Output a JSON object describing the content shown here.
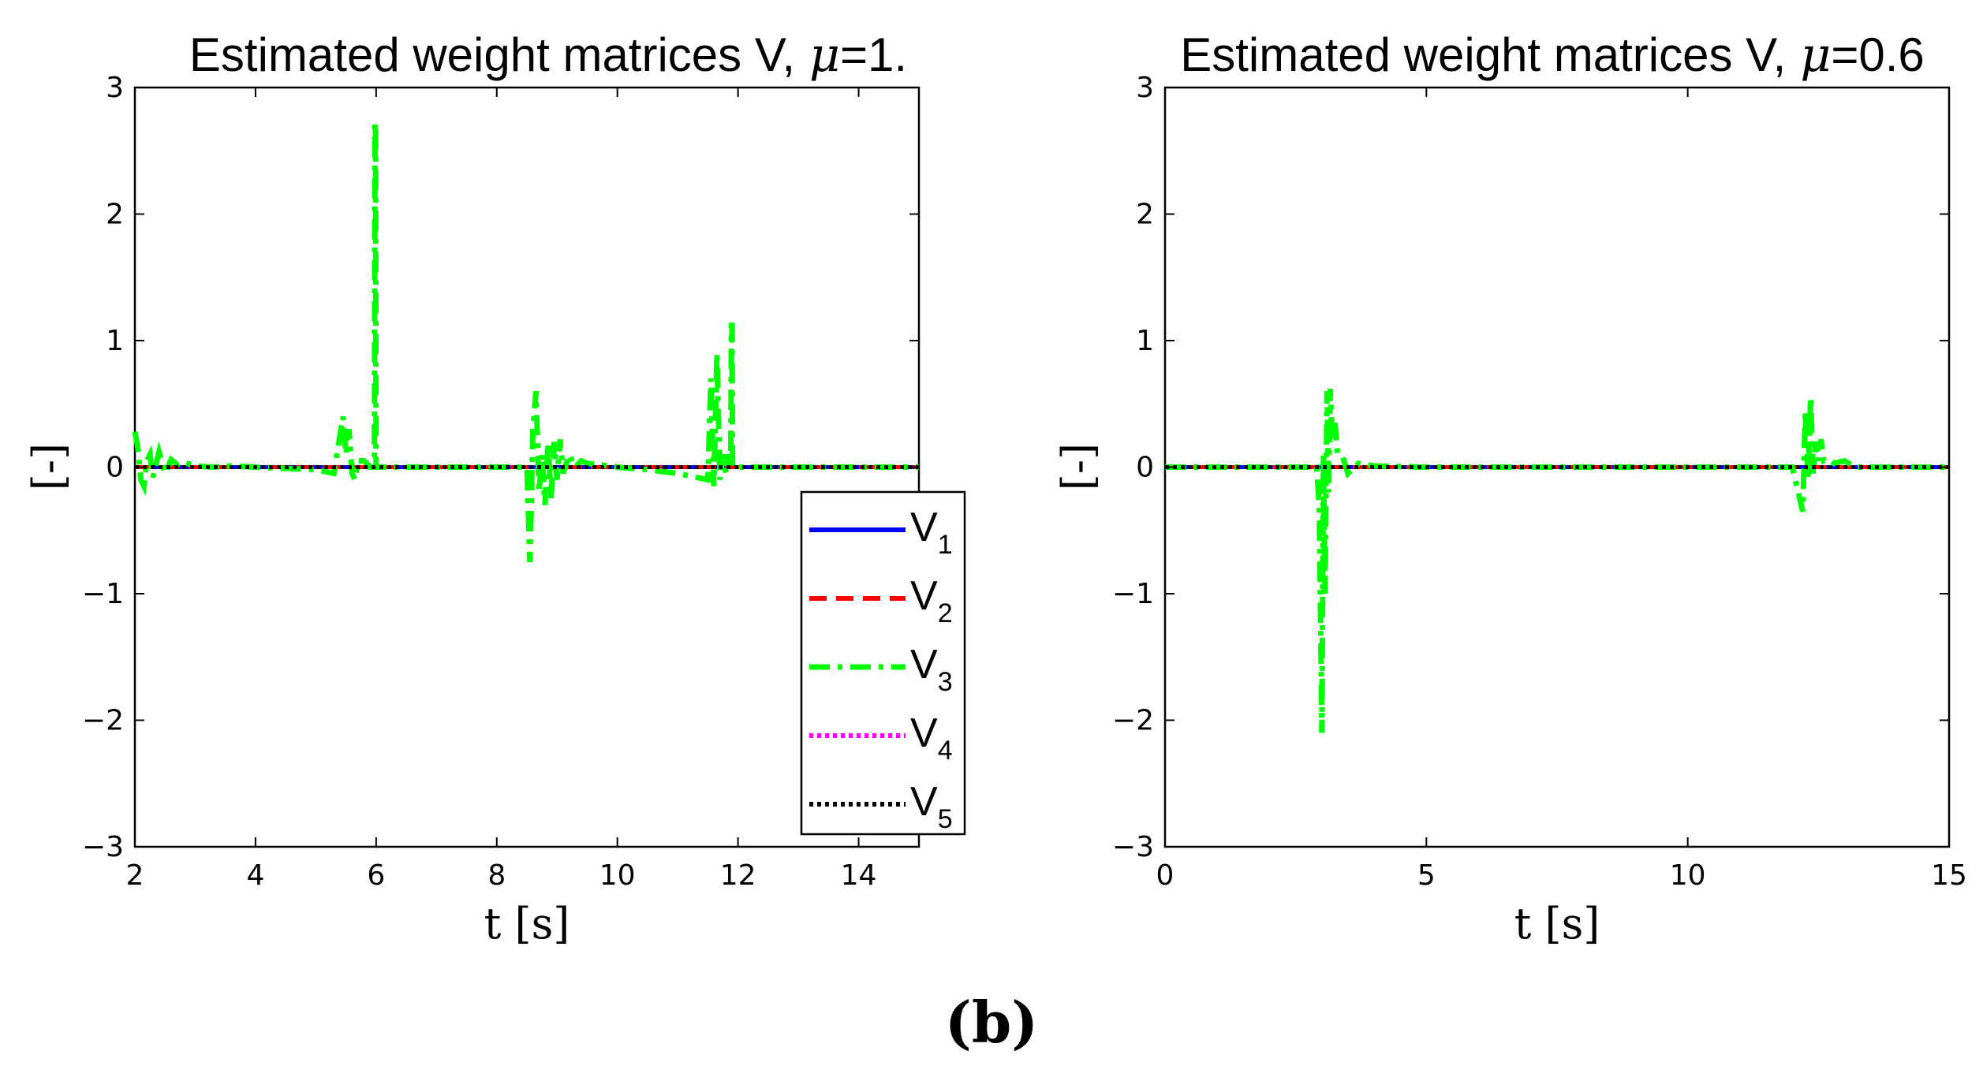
{
  "chart_data": [
    {
      "type": "line",
      "title": "Estimated weight matrices V,",
      "title_symbol": "μ",
      "title_value": "=1.",
      "xlabel": "t [s]",
      "ylabel": "[-]",
      "xlim": [
        2,
        15
      ],
      "ylim": [
        -3,
        3
      ],
      "xticks": [
        2,
        4,
        6,
        8,
        10,
        12,
        14
      ],
      "xtick_labels": [
        "2",
        "4",
        "6",
        "8",
        "10",
        "12",
        "14"
      ],
      "yticks": [
        -3,
        -2,
        -1,
        0,
        1,
        2,
        3
      ],
      "ytick_labels": [
        "−3",
        "−2",
        "−1",
        "0",
        "1",
        "2",
        "3"
      ],
      "legend": {
        "position": "lower-right",
        "entries": [
          {
            "base": "V",
            "sub": "1"
          },
          {
            "base": "V",
            "sub": "2"
          },
          {
            "base": "V",
            "sub": "3"
          },
          {
            "base": "V",
            "sub": "4"
          },
          {
            "base": "V",
            "sub": "5"
          }
        ]
      },
      "series": [
        {
          "name": "V1",
          "color": "#0000ff",
          "style": "solid",
          "x": [
            2,
            15
          ],
          "y": [
            0,
            0
          ]
        },
        {
          "name": "V2",
          "color": "#ff0000",
          "style": "dashed",
          "x": [
            2,
            15
          ],
          "y": [
            0,
            0
          ]
        },
        {
          "name": "V3",
          "color": "#00ff00",
          "style": "dashdot",
          "x": [
            2.0,
            2.05,
            2.1,
            2.15,
            2.2,
            2.25,
            2.3,
            2.4,
            2.5,
            2.6,
            2.7,
            2.8,
            3.0,
            3.3,
            3.6,
            4.0,
            4.5,
            5.0,
            5.3,
            5.45,
            5.5,
            5.55,
            5.6,
            5.65,
            5.7,
            5.8,
            5.9,
            5.97,
            5.98,
            5.99,
            6.0,
            6.01,
            6.02,
            6.2,
            6.6,
            7.0,
            7.5,
            8.0,
            8.3,
            8.5,
            8.55,
            8.6,
            8.65,
            8.7,
            8.75,
            8.8,
            8.85,
            8.9,
            8.95,
            9.0,
            9.05,
            9.1,
            9.2,
            9.3,
            9.4,
            9.5,
            9.7,
            10.0,
            10.5,
            11.0,
            11.3,
            11.5,
            11.55,
            11.6,
            11.65,
            11.7,
            11.75,
            11.8,
            11.85,
            11.88,
            11.89,
            11.9,
            11.91,
            11.92,
            12.0,
            12.5,
            13.0,
            14.0,
            15.0
          ],
          "y": [
            0.28,
            0.15,
            -0.1,
            -0.15,
            0.05,
            0.1,
            -0.08,
            0.12,
            -0.05,
            0.06,
            0.02,
            0.04,
            0.01,
            0.0,
            0.01,
            0.0,
            -0.01,
            -0.02,
            -0.05,
            0.4,
            0.1,
            0.3,
            -0.05,
            -0.1,
            0.05,
            0.05,
            0.0,
            0.0,
            2.72,
            2.72,
            0.0,
            0.0,
            0.0,
            0.0,
            0.0,
            0.0,
            0.0,
            0.0,
            0.0,
            0.0,
            -0.75,
            0.3,
            0.6,
            -0.2,
            0.1,
            -0.3,
            0.2,
            -0.25,
            0.2,
            -0.1,
            0.22,
            -0.05,
            0.1,
            0.0,
            0.05,
            0.03,
            0.02,
            0.0,
            -0.02,
            -0.05,
            -0.08,
            -0.1,
            0.7,
            -0.15,
            0.9,
            -0.1,
            0.1,
            -0.05,
            0.1,
            0.0,
            1.12,
            1.12,
            0.0,
            0.0,
            0.0,
            0.0,
            0.0,
            0.0,
            0.0
          ]
        },
        {
          "name": "V4",
          "color": "#ff00ff",
          "style": "dotted",
          "x": [
            2,
            15
          ],
          "y": [
            0,
            0
          ]
        },
        {
          "name": "V5",
          "color": "#000000",
          "style": "dotted",
          "x": [
            2,
            15
          ],
          "y": [
            0,
            0
          ]
        }
      ]
    },
    {
      "type": "line",
      "title": "Estimated weight matrices V,",
      "title_symbol": "μ",
      "title_value": "=0.6",
      "xlabel": "t [s]",
      "ylabel": "[-]",
      "xlim": [
        0,
        15
      ],
      "ylim": [
        -3,
        3
      ],
      "xticks": [
        0,
        5,
        10,
        15
      ],
      "xtick_labels": [
        "0",
        "5",
        "10",
        "15"
      ],
      "yticks": [
        -3,
        -2,
        -1,
        0,
        1,
        2,
        3
      ],
      "ytick_labels": [
        "−3",
        "−2",
        "−1",
        "0",
        "1",
        "2",
        "3"
      ],
      "series": [
        {
          "name": "V1",
          "color": "#0000ff",
          "style": "solid",
          "x": [
            0,
            15
          ],
          "y": [
            0,
            0
          ]
        },
        {
          "name": "V2",
          "color": "#ff0000",
          "style": "dashed",
          "x": [
            0,
            15
          ],
          "y": [
            0,
            0
          ]
        },
        {
          "name": "V3",
          "color": "#00ff00",
          "style": "dashdot",
          "x": [
            0,
            2.9,
            2.95,
            3.0,
            3.03,
            3.06,
            3.1,
            3.13,
            3.16,
            3.2,
            3.25,
            3.3,
            3.4,
            3.5,
            3.7,
            4.0,
            5.0,
            12.0,
            12.2,
            12.25,
            12.3,
            12.35,
            12.4,
            12.45,
            12.5,
            12.55,
            12.6,
            12.7,
            12.8,
            13.0,
            13.2,
            15.0
          ],
          "y": [
            0,
            0,
            -0.3,
            -2.1,
            0.1,
            -1.0,
            0.6,
            -0.2,
            0.62,
            0.2,
            0.35,
            0.1,
            0.08,
            -0.05,
            0.03,
            0.01,
            0.0,
            0.0,
            -0.35,
            0.45,
            -0.1,
            0.55,
            -0.05,
            0.2,
            0.05,
            0.22,
            0.05,
            0.06,
            0.03,
            0.05,
            0.0,
            0.0
          ]
        },
        {
          "name": "V4",
          "color": "#ff00ff",
          "style": "dotted",
          "x": [
            0,
            15
          ],
          "y": [
            0,
            0
          ]
        },
        {
          "name": "V5",
          "color": "#000000",
          "style": "dotted",
          "x": [
            0,
            15
          ],
          "y": [
            0,
            0
          ]
        }
      ]
    }
  ],
  "figure_caption": "(b)"
}
